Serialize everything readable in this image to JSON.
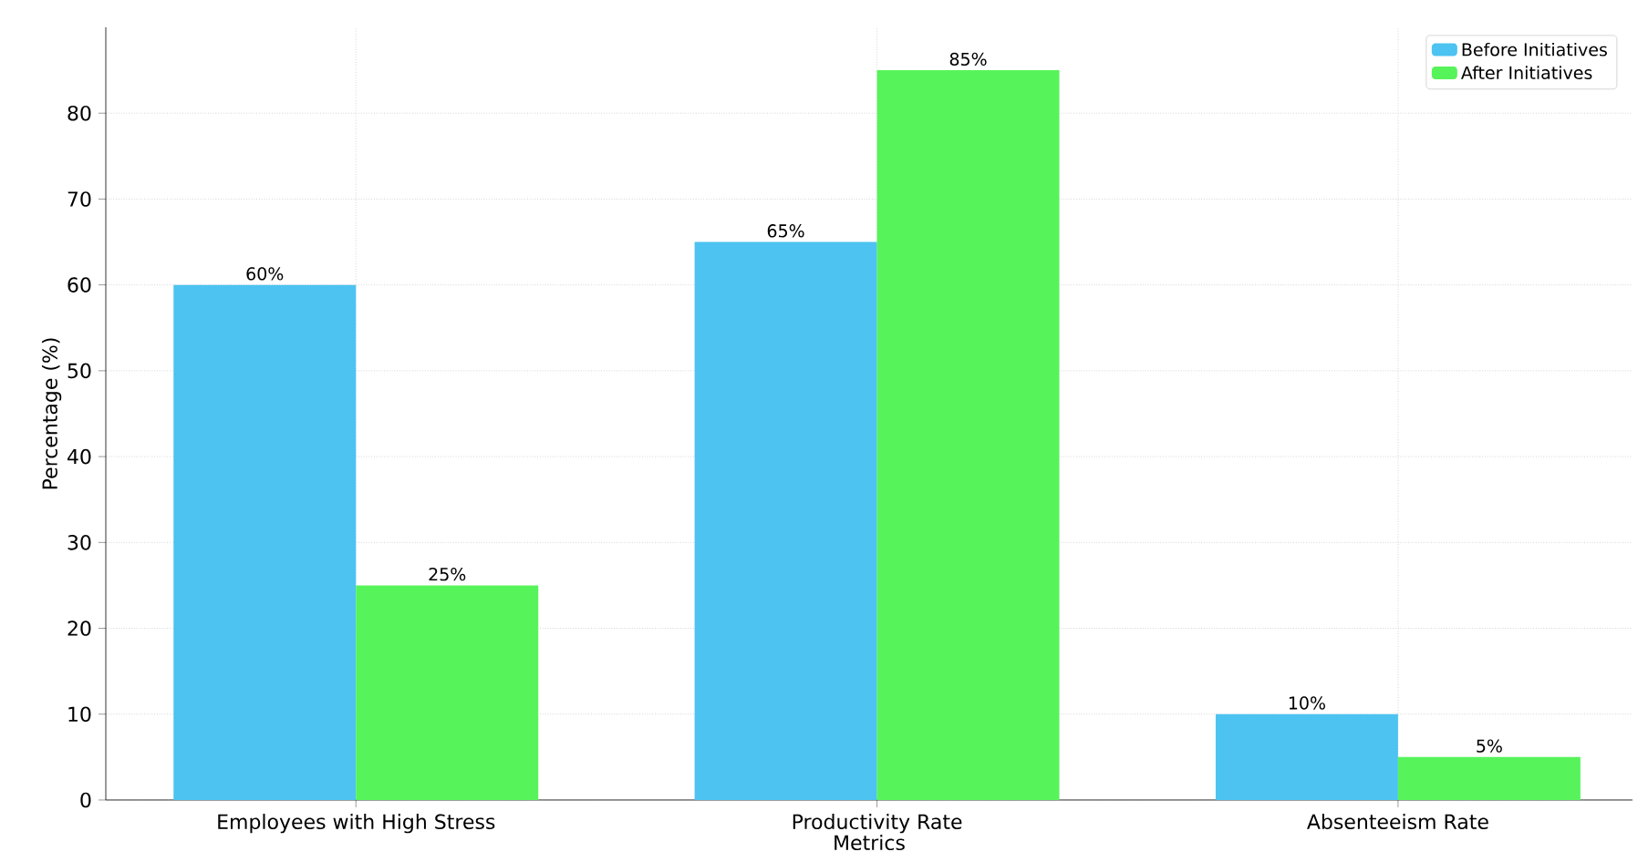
{
  "chart_data": {
    "type": "bar",
    "xlabel": "Metrics",
    "ylabel": "Percentage (%)",
    "categories": [
      "Employees with High Stress",
      "Productivity Rate",
      "Absenteeism Rate"
    ],
    "series": [
      {
        "name": "Before Initiatives",
        "color": "#4cc3f1",
        "values": [
          60,
          65,
          10
        ],
        "value_labels": [
          "60%",
          "65%",
          "10%"
        ]
      },
      {
        "name": "After Initiatives",
        "color": "#57f35a",
        "values": [
          25,
          85,
          5
        ],
        "value_labels": [
          "25%",
          "85%",
          "5%"
        ]
      }
    ],
    "ylim": [
      0,
      90
    ],
    "yticks": [
      0,
      10,
      20,
      30,
      40,
      50,
      60,
      70,
      80
    ],
    "grid": true,
    "legend": "top right"
  }
}
